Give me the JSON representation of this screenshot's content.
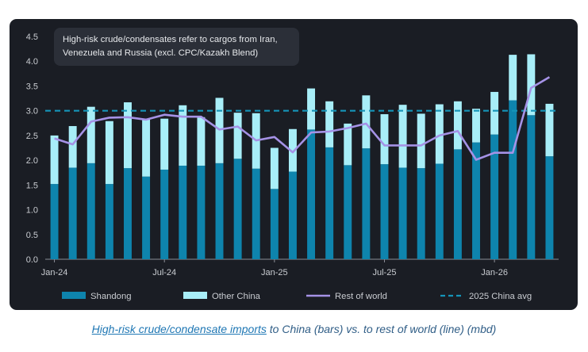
{
  "colors": {
    "panel_bg": "#1a1d24",
    "shandong": "#0e84ad",
    "other_china": "#a8eef8",
    "rest_of_world": "#a592e6",
    "china_avg": "#1594b8",
    "text": "#c9ccd1",
    "annotation_bg": "#2b2f38"
  },
  "chart_data": {
    "type": "bar",
    "stacked": true,
    "title": "",
    "annotation": [
      "High-risk crude/condensates refer to cargos from Iran,",
      "Venezuela and Russia (excl. CPC/Kazakh Blend)"
    ],
    "ylim": [
      0,
      4.5
    ],
    "yticks": [
      "0.0",
      "0.5",
      "1.0",
      "1.5",
      "2.0",
      "2.5",
      "3.0",
      "3.5",
      "4.0",
      "4.5"
    ],
    "xtick_labels": [
      {
        "index": 0,
        "label": "Jan-24"
      },
      {
        "index": 6,
        "label": "Jul-24"
      },
      {
        "index": 12,
        "label": "Jan-25"
      },
      {
        "index": 18,
        "label": "Jul-25"
      },
      {
        "index": 24,
        "label": "Jan-26"
      }
    ],
    "months_count": 28,
    "series": [
      {
        "name": "Shandong",
        "kind": "bar",
        "values": [
          1.52,
          1.85,
          1.94,
          1.52,
          1.84,
          1.67,
          1.81,
          1.89,
          1.89,
          1.94,
          2.03,
          1.83,
          1.42,
          1.77,
          2.62,
          2.26,
          1.9,
          2.24,
          1.92,
          1.85,
          1.84,
          1.93,
          2.22,
          2.36,
          2.52,
          3.21,
          2.91,
          2.08
        ]
      },
      {
        "name": "Other China",
        "kind": "bar",
        "values": [
          0.98,
          0.84,
          1.14,
          1.27,
          1.33,
          1.17,
          1.03,
          1.22,
          0.98,
          1.32,
          0.93,
          1.12,
          0.83,
          0.86,
          0.83,
          0.93,
          0.84,
          1.07,
          1.01,
          1.27,
          1.1,
          1.2,
          0.97,
          0.68,
          0.86,
          0.92,
          1.23,
          1.06
        ]
      },
      {
        "name": "Rest of world",
        "kind": "line",
        "values": [
          2.44,
          2.32,
          2.78,
          2.86,
          2.87,
          2.82,
          2.92,
          2.88,
          2.88,
          2.62,
          2.68,
          2.4,
          2.47,
          2.16,
          2.56,
          2.58,
          2.65,
          2.74,
          2.3,
          2.3,
          2.3,
          2.5,
          2.59,
          2.01,
          2.15,
          2.15,
          3.46,
          3.68
        ]
      },
      {
        "name": "2025 China avg",
        "kind": "hline",
        "value": 3.0
      }
    ],
    "legend_position": "bottom",
    "caption_link": "High-risk crude/condensate imports",
    "caption_rest": " to China (bars) vs. to rest of world (line) (mbd)"
  }
}
